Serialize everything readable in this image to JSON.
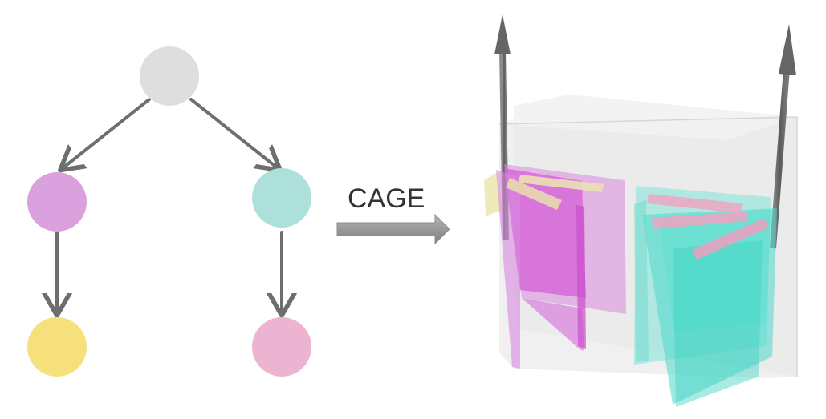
{
  "diagram": {
    "label": "CAGE",
    "tree": {
      "nodes": [
        {
          "id": "root",
          "color": "#dedede"
        },
        {
          "id": "left-child",
          "color": "#dba0de"
        },
        {
          "id": "right-child",
          "color": "#ade0da"
        },
        {
          "id": "left-leaf",
          "color": "#f5e07c"
        },
        {
          "id": "right-leaf",
          "color": "#ecb4d0"
        }
      ],
      "edges": [
        {
          "from": "root",
          "to": "left-child"
        },
        {
          "from": "root",
          "to": "right-child"
        },
        {
          "from": "left-child",
          "to": "left-leaf"
        },
        {
          "from": "right-child",
          "to": "right-leaf"
        }
      ],
      "edge_color": "#6e6e6e"
    },
    "arrow_color": "#9a9a9a",
    "scene_colors": {
      "box": "#e6e6e6",
      "magenta_panel": "#d45fd8",
      "cyan_panel": "#4fd9cb",
      "pink_bar": "#e9aac4",
      "tan_bar": "#ece0b4",
      "yellow_panel": "#ece6b0",
      "vector": "#6a6a6a"
    }
  }
}
